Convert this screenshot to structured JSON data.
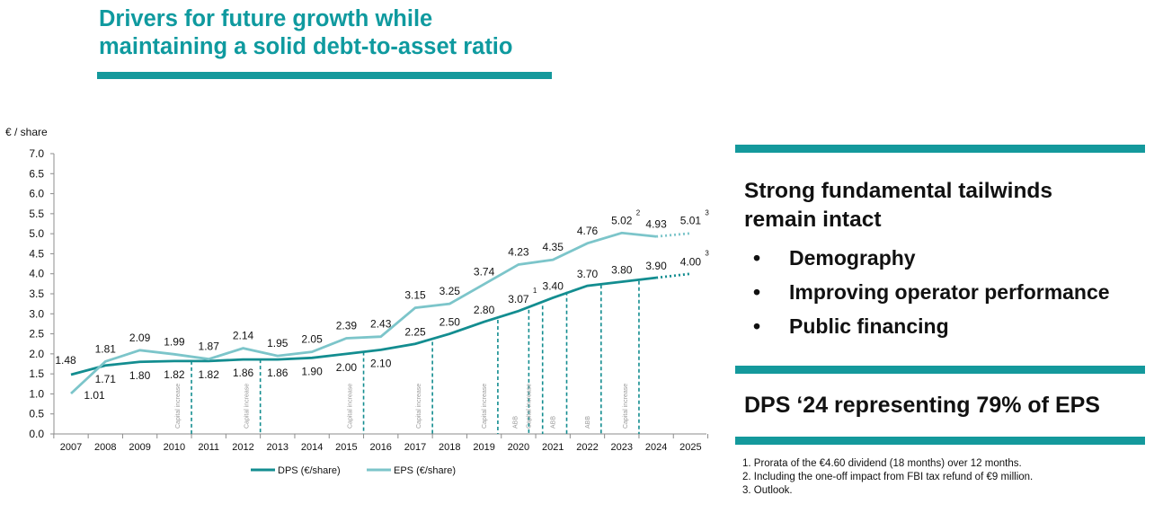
{
  "title": {
    "line1": "Drivers for future growth while",
    "line2": "maintaining a solid debt-to-asset ratio"
  },
  "panel": {
    "headline_line1": "Strong fundamental tailwinds",
    "headline_line2": "remain intact",
    "bullet_glyph": "•",
    "bullets": [
      "Demography",
      "Improving operator performance",
      "Public financing"
    ],
    "dps_statement": "DPS ‘24 representing 79% of EPS",
    "footnotes": [
      "1. Prorata of the €4.60 dividend (18 months) over 12 months.",
      "2. Including the one-off impact from FBI tax refund of €9 million.",
      "3. Outlook."
    ]
  },
  "colors": {
    "dps": "#138d90",
    "eps": "#7cc5ca",
    "accent": "#14999c",
    "title": "#0f9a9f"
  },
  "chart_data": {
    "type": "line",
    "ylabel": "€ / share",
    "ylim": [
      0,
      7
    ],
    "yticks": [
      "0.0",
      "0.5",
      "1.0",
      "1.5",
      "2.0",
      "2.5",
      "3.0",
      "3.5",
      "4.0",
      "4.5",
      "5.0",
      "5.5",
      "6.0",
      "6.5",
      "7.0"
    ],
    "x": [
      "2007",
      "2008",
      "2009",
      "2010",
      "2011",
      "2012",
      "2013",
      "2014",
      "2015",
      "2016",
      "2017",
      "2018",
      "2019",
      "2020",
      "2021",
      "2022",
      "2023",
      "2024",
      "2025"
    ],
    "series": [
      {
        "name": "DPS (€/share)",
        "values": [
          1.48,
          1.71,
          1.8,
          1.82,
          1.82,
          1.86,
          1.86,
          1.9,
          2.0,
          2.1,
          2.25,
          2.5,
          2.8,
          3.07,
          3.4,
          3.7,
          3.8,
          3.9,
          4.0
        ],
        "labels": [
          "1.48",
          "1.71",
          "1.80",
          "1.82",
          "1.82",
          "1.86",
          "1.86",
          "1.90",
          "2.00",
          "2.10",
          "2.25",
          "2.50",
          "2.80",
          "3.07",
          "3.40",
          "3.70",
          "3.80",
          "3.90",
          "4.00"
        ],
        "footnote_marks": [
          {
            "x": "2020",
            "mark": "1"
          },
          {
            "x": "2025",
            "mark": "3"
          }
        ],
        "dotted_from": "2024"
      },
      {
        "name": "EPS (€/share)",
        "values": [
          1.01,
          1.81,
          2.09,
          1.99,
          1.87,
          2.14,
          1.95,
          2.05,
          2.39,
          2.43,
          3.15,
          3.25,
          3.74,
          4.23,
          4.35,
          4.76,
          5.02,
          4.93,
          5.01
        ],
        "labels": [
          "1.01",
          "1.81",
          "2.09",
          "1.99",
          "1.87",
          "2.14",
          "1.95",
          "2.05",
          "2.39",
          "2.43",
          "3.15",
          "3.25",
          "3.74",
          "4.23",
          "4.35",
          "4.76",
          "5.02",
          "4.93",
          "5.01"
        ],
        "footnote_marks": [
          {
            "x": "2023",
            "mark": "2"
          },
          {
            "x": "2025",
            "mark": "3"
          }
        ],
        "dotted_from": "2024"
      }
    ],
    "annotations": [
      {
        "x": 2010.5,
        "text": "Capital increase",
        "top_value": 1.82
      },
      {
        "x": 2012.5,
        "text": "Capital increase",
        "top_value": 1.86
      },
      {
        "x": 2015.5,
        "text": "Capital increase",
        "top_value": 2.05
      },
      {
        "x": 2017.5,
        "text": "Capital increase",
        "top_value": 2.3
      },
      {
        "x": 2019.4,
        "text": "Capital increase",
        "top_value": 2.85
      },
      {
        "x": 2020.3,
        "text": "ABB",
        "top_value": 3.1
      },
      {
        "x": 2020.7,
        "text": "Capital increase",
        "top_value": 3.2
      },
      {
        "x": 2021.4,
        "text": "ABB",
        "top_value": 3.55
      },
      {
        "x": 2022.4,
        "text": "ABB",
        "top_value": 3.72
      },
      {
        "x": 2023.5,
        "text": "Capital increase",
        "top_value": 3.82
      }
    ],
    "legend_position": "bottom",
    "grid": false
  }
}
